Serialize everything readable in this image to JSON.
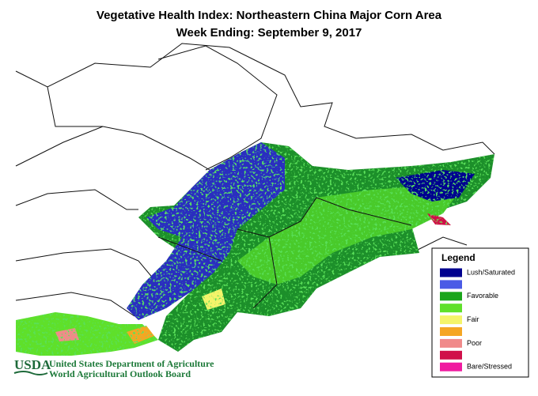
{
  "header": {
    "title": "Vegetative Health Index:  Northeastern China Major Corn Area",
    "subtitle": "Week Ending:  September 9, 2017"
  },
  "legend": {
    "title": "Legend",
    "items": [
      {
        "label": "Lush/Saturated",
        "color": "#00008f"
      },
      {
        "label": null,
        "color": "#4b5be6"
      },
      {
        "label": "Favorable",
        "color": "#1aa51a"
      },
      {
        "label": null,
        "color": "#5fe02a"
      },
      {
        "label": "Fair",
        "color": "#f4f46a"
      },
      {
        "label": null,
        "color": "#f5a623"
      },
      {
        "label": "Poor",
        "color": "#f08a8a"
      },
      {
        "label": null,
        "color": "#d0104a"
      },
      {
        "label": "Bare/Stressed",
        "color": "#f01aa0"
      }
    ]
  },
  "footer": {
    "logo": "USDA",
    "lines": [
      "United States Department of Agriculture",
      "World Agricultural Outlook Board"
    ]
  }
}
